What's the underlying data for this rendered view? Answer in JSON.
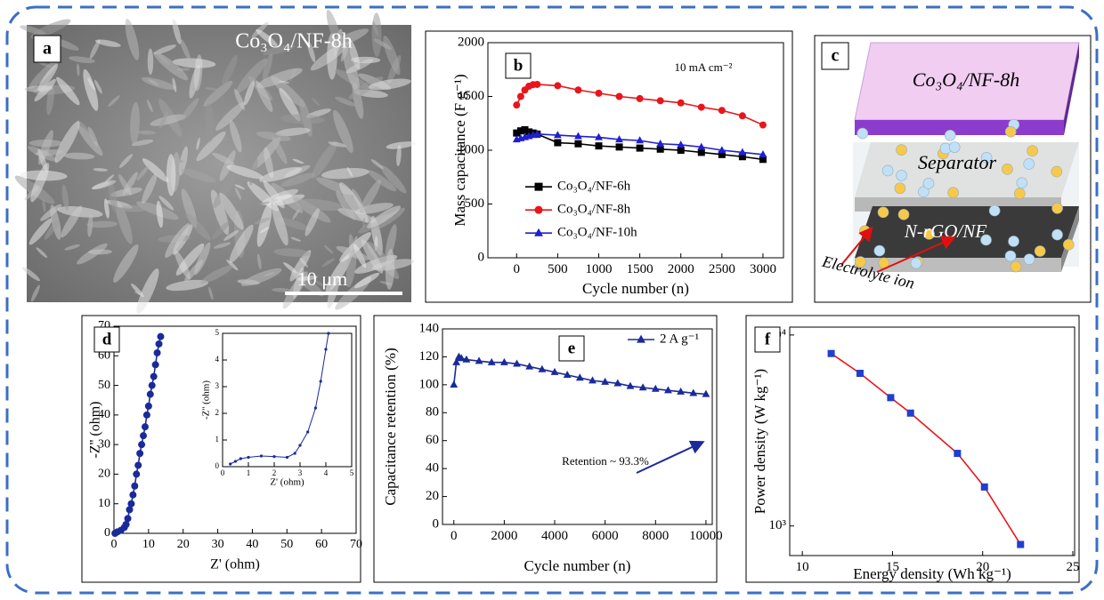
{
  "panels": {
    "a": {
      "label": "a",
      "caption": "Co₃O₄/NF-8h",
      "scale_bar": "10 μm"
    },
    "c": {
      "label": "c",
      "top_layer": "Co₃O₄/NF-8h",
      "middle_layer": "Separator",
      "bottom_layer": "N-rGO/NF",
      "ion_label": "Electrolyte ion"
    }
  },
  "chart_data": [
    {
      "type": "line",
      "label": "b",
      "x_label": "Cycle number (n)",
      "y_label": "Mass capacitance (F g⁻¹)",
      "annotation": "10 mA cm⁻²",
      "xlim": [
        -350,
        3250
      ],
      "ylim": [
        0,
        2000
      ],
      "xticks": [
        0,
        500,
        1000,
        1500,
        2000,
        2500,
        3000
      ],
      "yticks": [
        0,
        500,
        1000,
        1500,
        2000
      ],
      "legend": "center left",
      "x": [
        0,
        50,
        100,
        150,
        200,
        250,
        500,
        750,
        1000,
        1250,
        1500,
        1750,
        2000,
        2250,
        2500,
        2750,
        3000
      ],
      "series": [
        {
          "name": "Co₃O₄/NF-6h",
          "color": "#000000",
          "marker": "square",
          "values": [
            1160,
            1180,
            1190,
            1170,
            1160,
            1150,
            1070,
            1060,
            1040,
            1030,
            1020,
            1010,
            1000,
            980,
            960,
            940,
            915
          ]
        },
        {
          "name": "Co₃O₄/NF-8h",
          "color": "#e8161b",
          "marker": "circle",
          "values": [
            1420,
            1500,
            1560,
            1595,
            1610,
            1612,
            1600,
            1560,
            1530,
            1500,
            1480,
            1460,
            1440,
            1400,
            1370,
            1320,
            1235
          ]
        },
        {
          "name": "Co₃O₄/NF-10h",
          "color": "#1f1fd0",
          "marker": "triangle",
          "values": [
            1100,
            1110,
            1120,
            1130,
            1140,
            1150,
            1140,
            1130,
            1120,
            1100,
            1090,
            1060,
            1050,
            1030,
            1000,
            980,
            960
          ]
        }
      ]
    },
    {
      "type": "line",
      "label": "d",
      "x_label": "Z' (ohm)",
      "y_label": "-Z'' (ohm)",
      "xlim": [
        0,
        70
      ],
      "ylim": [
        0,
        70
      ],
      "xticks": [
        0,
        10,
        20,
        30,
        40,
        50,
        60,
        70
      ],
      "yticks": [
        0,
        10,
        20,
        30,
        40,
        50,
        60,
        70
      ],
      "series": [
        {
          "color": "#1a2a9a",
          "marker": "circle",
          "x": [
            0.3,
            1,
            2,
            3,
            3.5,
            4,
            4.5,
            5,
            5.5,
            6,
            6.5,
            7,
            7.5,
            8,
            8.5,
            9,
            9.5,
            10,
            10.5,
            11,
            11.5,
            12,
            12.5,
            13,
            13.5
          ],
          "values": [
            0,
            0.5,
            1,
            2,
            3,
            5,
            8,
            10,
            13,
            16,
            20,
            23,
            27,
            30,
            33,
            36,
            40,
            43,
            47,
            50,
            53,
            57,
            61,
            64,
            66.5
          ]
        }
      ],
      "inset": {
        "type": "line",
        "x_label": "Z' (ohm)",
        "y_label": "-Z'' (ohm)",
        "xlim": [
          0,
          5
        ],
        "ylim": [
          0,
          5
        ],
        "xticks": [
          0,
          1,
          2,
          3,
          4,
          5
        ],
        "yticks": [
          0,
          1,
          2,
          3,
          4,
          5
        ],
        "series": [
          {
            "color": "#1a2a9a",
            "marker": "circle",
            "x": [
              0.3,
              0.5,
              0.7,
              1,
              1.5,
              2,
              2.5,
              2.8,
              3,
              3.3,
              3.6,
              3.8,
              4,
              4.1
            ],
            "values": [
              0.1,
              0.2,
              0.3,
              0.35,
              0.4,
              0.38,
              0.35,
              0.5,
              0.8,
              1.3,
              2.2,
              3.2,
              4.4,
              5
            ]
          }
        ]
      }
    },
    {
      "type": "line",
      "label": "e",
      "x_label": "Cycle number (n)",
      "y_label": "Capacitance retention (%)",
      "annotation": "Retention ~ 93.3%",
      "xlim": [
        -450,
        10250
      ],
      "ylim": [
        0,
        140
      ],
      "xticks": [
        0,
        2000,
        4000,
        6000,
        8000,
        10000
      ],
      "yticks": [
        0,
        20,
        40,
        60,
        80,
        100,
        120,
        140
      ],
      "legend": "upper right",
      "x": [
        0,
        100,
        200,
        300,
        500,
        1000,
        1500,
        2000,
        2500,
        3000,
        3500,
        4000,
        4500,
        5000,
        5500,
        6000,
        6500,
        7000,
        7500,
        8000,
        8500,
        9000,
        9500,
        10000
      ],
      "series": [
        {
          "name": "2 A g⁻¹",
          "color": "#1a2a9a",
          "marker": "triangle",
          "values": [
            100,
            116,
            120,
            119,
            118,
            117,
            116,
            116,
            115,
            113,
            111,
            109,
            107,
            105,
            103,
            102,
            101,
            99,
            98,
            97,
            96,
            95,
            94,
            93.3
          ]
        }
      ]
    },
    {
      "type": "line",
      "label": "f",
      "x_label": "Energy density (Wh kg⁻¹)",
      "y_label": "Power density (W kg⁻¹)",
      "log_y": true,
      "xlim": [
        9.3,
        25.1
      ],
      "ylim": [
        700,
        11000
      ],
      "xticks": [
        10,
        15,
        20,
        25
      ],
      "yticks": [
        {
          "value": 1000,
          "label": "10³"
        },
        {
          "value": 10000,
          "label": "10⁴"
        }
      ],
      "x": [
        11.6,
        13.2,
        14.9,
        16.0,
        18.6,
        20.1,
        22.1
      ],
      "series": [
        {
          "color": "#e8161b",
          "marker": "square",
          "marker_color": "#1f3fd0",
          "values": [
            8000,
            6300,
            4700,
            3900,
            2400,
            1600,
            800
          ]
        }
      ]
    }
  ]
}
